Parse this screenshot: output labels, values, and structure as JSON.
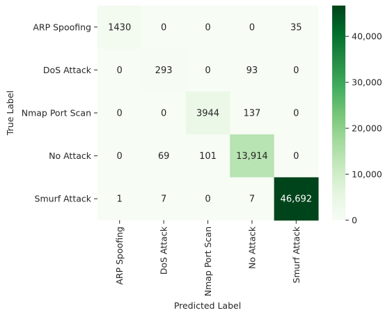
{
  "chart_data": {
    "type": "heatmap",
    "title": "",
    "xlabel": "Predicted Label",
    "ylabel": "True Label",
    "x_categories": [
      "ARP Spoofing",
      "DoS Attack",
      "Nmap Port Scan",
      "No Attack",
      "Smurf Attack"
    ],
    "y_categories": [
      "ARP Spoofing",
      "DoS Attack",
      "Nmap Port Scan",
      "No Attack",
      "Smurf Attack"
    ],
    "values": [
      [
        1430,
        0,
        0,
        0,
        35
      ],
      [
        0,
        293,
        0,
        93,
        0
      ],
      [
        0,
        0,
        3944,
        137,
        0
      ],
      [
        0,
        69,
        101,
        13914,
        0
      ],
      [
        1,
        7,
        0,
        7,
        46692
      ]
    ],
    "cell_labels": [
      [
        "1430",
        "0",
        "0",
        "0",
        "35"
      ],
      [
        "0",
        "293",
        "0",
        "93",
        "0"
      ],
      [
        "0",
        "0",
        "3944",
        "137",
        "0"
      ],
      [
        "0",
        "69",
        "101",
        "13,914",
        "0"
      ],
      [
        "1",
        "7",
        "0",
        "7",
        "46,692"
      ]
    ],
    "colormap": "Greens",
    "colorbar": {
      "range": [
        0,
        46692
      ],
      "ticks": [
        0,
        10000,
        20000,
        30000,
        40000
      ],
      "tick_labels": [
        "0",
        "10,000",
        "20,000",
        "30,000",
        "40,000"
      ]
    }
  }
}
